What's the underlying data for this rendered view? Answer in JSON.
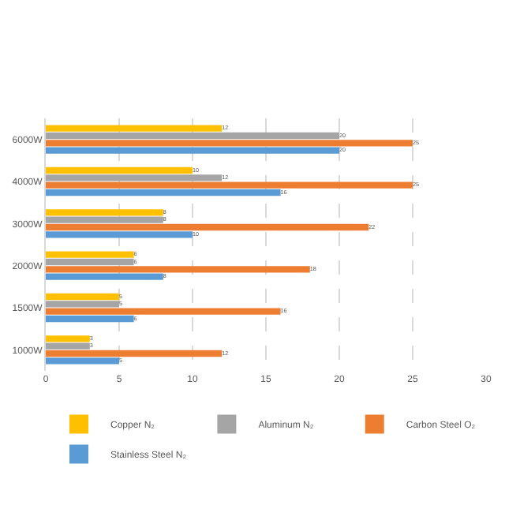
{
  "chart_data": {
    "type": "bar",
    "orientation": "horizontal",
    "categories": [
      "6000W",
      "4000W",
      "3000W",
      "2000W",
      "1500W",
      "1000W"
    ],
    "series": [
      {
        "name": "Copper N₂",
        "color": "#ffc000",
        "values": [
          12,
          10,
          8,
          6,
          5,
          3
        ]
      },
      {
        "name": "Aluminum N₂",
        "color": "#a5a5a5",
        "values": [
          20,
          12,
          8,
          6,
          5,
          3
        ]
      },
      {
        "name": "Carbon Steel O₂",
        "color": "#ed7d31",
        "values": [
          25,
          25,
          22,
          18,
          16,
          12
        ]
      },
      {
        "name": "Stainless Steel N₂",
        "color": "#5b9bd5",
        "values": [
          20,
          16,
          10,
          8,
          6,
          5
        ]
      }
    ],
    "xlim": [
      0,
      30
    ],
    "xticks": [
      0,
      5,
      10,
      15,
      20,
      25,
      30
    ],
    "grid": "x",
    "legend": "bottom",
    "data_labels": true
  }
}
